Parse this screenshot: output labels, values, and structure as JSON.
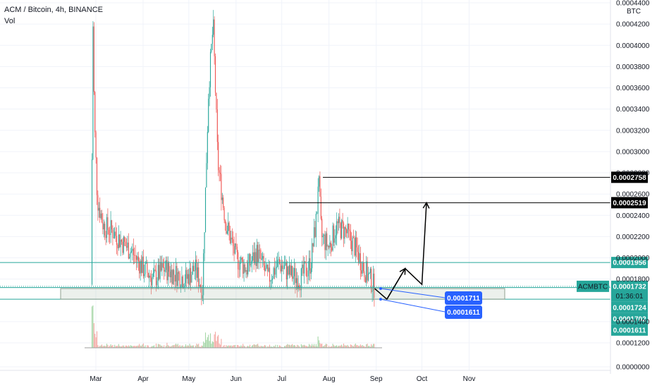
{
  "header": {
    "symbol_line": "ACM / Bitcoin, 4h, BINANCE",
    "volume_label": "Vol"
  },
  "chart_data": {
    "type": "candlestick",
    "currency": "BTC",
    "y_ticks": [
      "0.0004400",
      "0.0004200",
      "0.0004000",
      "0.0003800",
      "0.0003600",
      "0.0003400",
      "0.0003200",
      "0.0003000",
      "0.0002800",
      "0.0002600",
      "0.0002400",
      "0.0002200",
      "0.0002000",
      "0.0001800",
      "0.0001400",
      "0.0001200",
      "0.0000000"
    ],
    "x_ticks": [
      "Mar",
      "Apr",
      "May",
      "Jun",
      "Jul",
      "Aug",
      "Sep",
      "Oct",
      "Nov"
    ],
    "price_levels": {
      "resistance_high": "0.0002758",
      "resistance_mid": "0.0002519",
      "green_line": "0.0001956",
      "current": "0.0001732",
      "countdown": "01:36:01",
      "level_a": "0.0001724",
      "level_b": "0.0001702",
      "level_c": "0.0001611"
    },
    "symbol_tag": "ACMBTC",
    "annotations": [
      "0.0001711",
      "0.0001611"
    ],
    "price_path": [
      [
        "2021-02-26",
        0.000175
      ],
      [
        "2021-02-27",
        0.00043
      ],
      [
        "2021-02-28",
        0.00033
      ],
      [
        "2021-03-02",
        0.000255
      ],
      [
        "2021-03-06",
        0.00023
      ],
      [
        "2021-03-12",
        0.000225
      ],
      [
        "2021-03-18",
        0.000215
      ],
      [
        "2021-03-25",
        0.000205
      ],
      [
        "2021-04-01",
        0.00019
      ],
      [
        "2021-04-08",
        0.00018
      ],
      [
        "2021-04-15",
        0.00019
      ],
      [
        "2021-04-22",
        0.000185
      ],
      [
        "2021-04-29",
        0.00018
      ],
      [
        "2021-05-05",
        0.00019
      ],
      [
        "2021-05-10",
        0.00017
      ],
      [
        "2021-05-14",
        0.00036
      ],
      [
        "2021-05-17",
        0.00042
      ],
      [
        "2021-05-20",
        0.00029
      ],
      [
        "2021-05-25",
        0.000235
      ],
      [
        "2021-06-01",
        0.0002
      ],
      [
        "2021-06-08",
        0.00019
      ],
      [
        "2021-06-15",
        0.000205
      ],
      [
        "2021-06-22",
        0.00018
      ],
      [
        "2021-06-29",
        0.000195
      ],
      [
        "2021-07-06",
        0.000185
      ],
      [
        "2021-07-13",
        0.00018
      ],
      [
        "2021-07-20",
        0.000195
      ],
      [
        "2021-07-24",
        0.00024
      ],
      [
        "2021-07-25",
        0.00028
      ],
      [
        "2021-07-27",
        0.00022
      ],
      [
        "2021-08-01",
        0.00021
      ],
      [
        "2021-08-06",
        0.00023
      ],
      [
        "2021-08-12",
        0.000225
      ],
      [
        "2021-08-18",
        0.00021
      ],
      [
        "2021-08-24",
        0.00019
      ],
      [
        "2021-08-31",
        0.000172
      ]
    ],
    "projection_path": [
      [
        "2021-08-31",
        0.0001711
      ],
      [
        "2021-09-08",
        0.0001611
      ],
      [
        "2021-09-20",
        0.00019
      ],
      [
        "2021-10-01",
        0.000175
      ],
      [
        "2021-10-04",
        0.0002519
      ]
    ],
    "support_zone": [
      0.0001611,
      0.0001711
    ],
    "colors": {
      "up": "#26a69a",
      "down": "#ef5350",
      "vol_up": "#a5d6a7",
      "vol_down": "#f4a9a4",
      "green": "#26a69a",
      "blue": "#2962ff",
      "dark": "#131722"
    }
  }
}
